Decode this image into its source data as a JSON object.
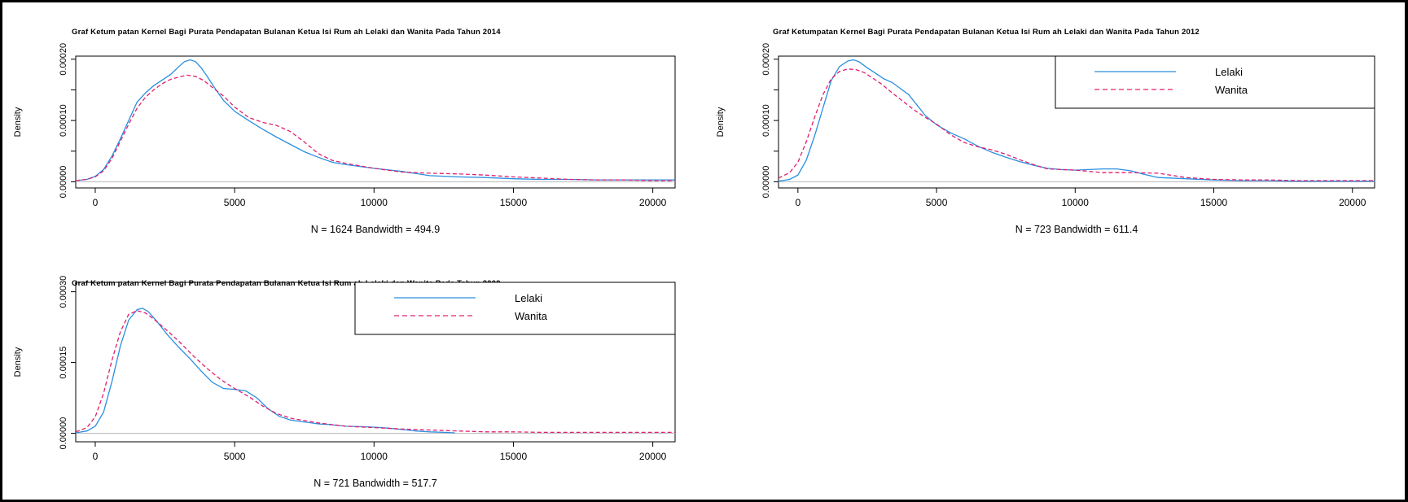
{
  "colors": {
    "lelaki": "#2a8fe0",
    "wanita": "#e0206e",
    "zero_line": "#bbbbbb"
  },
  "chart_data": [
    {
      "type": "line",
      "title": "Graf Ketum patan Kernel Bagi Purata Pendapatan Bulanan Ketua Isi Rum ah Lelaki dan Wanita Pada Tahun 2014",
      "ylabel": "Density",
      "xlabel": "N = 1624   Bandwidth = 494.9",
      "xlim": [
        -700,
        20800
      ],
      "ylim": [
        -1e-05,
        0.000205
      ],
      "xticks": [
        0,
        5000,
        10000,
        15000,
        20000
      ],
      "xtick_labels": [
        "0",
        "5000",
        "10000",
        "15000",
        "20000"
      ],
      "yticks": [
        0,
        5e-05,
        0.0001,
        0.00015,
        0.0002
      ],
      "ytick_labels": [
        "0.00000",
        "",
        "0.00010",
        "",
        "0.00020"
      ],
      "legend": null,
      "series": [
        {
          "name": "Lelaki",
          "style": "solid",
          "x": [
            -700,
            -300,
            0,
            300,
            600,
            900,
            1200,
            1500,
            1800,
            2100,
            2400,
            2700,
            3000,
            3200,
            3400,
            3600,
            3800,
            4000,
            4300,
            4600,
            5000,
            5500,
            6000,
            6500,
            7000,
            7500,
            8000,
            8500,
            9000,
            9500,
            10000,
            11000,
            12000,
            13000,
            14000,
            15000,
            16000,
            17000,
            18000,
            19000,
            20000,
            20800
          ],
          "y": [
            2e-06,
            4e-06,
            9e-06,
            2e-05,
            4.2e-05,
            7e-05,
            0.0001,
            0.00013,
            0.000145,
            0.000157,
            0.000166,
            0.000175,
            0.000188,
            0.000196,
            0.000199,
            0.000196,
            0.000186,
            0.000173,
            0.000152,
            0.000133,
            0.000115,
            0.0001,
            8.6e-05,
            7.3e-05,
            6.1e-05,
            4.9e-05,
            4e-05,
            3.2e-05,
            2.8e-05,
            2.5e-05,
            2.2e-05,
            1.7e-05,
            1e-05,
            8e-06,
            7e-06,
            5e-06,
            4e-06,
            4e-06,
            3e-06,
            3e-06,
            3e-06,
            3e-06
          ]
        },
        {
          "name": "Wanita",
          "style": "dashed",
          "x": [
            -700,
            -300,
            0,
            300,
            600,
            900,
            1200,
            1500,
            1800,
            2100,
            2400,
            2700,
            3000,
            3300,
            3600,
            3900,
            4200,
            4600,
            5000,
            5500,
            6000,
            6500,
            7000,
            7500,
            8000,
            8500,
            9000,
            10000,
            11000,
            12000,
            13000,
            14000,
            15000,
            16000,
            17000,
            18000,
            19000,
            20000,
            20800
          ],
          "y": [
            2e-06,
            4e-06,
            8e-06,
            1.8e-05,
            3.8e-05,
            6.6e-05,
            9.4e-05,
            0.00012,
            0.000138,
            0.00015,
            0.00016,
            0.000167,
            0.000171,
            0.000174,
            0.000172,
            0.000165,
            0.000154,
            0.00014,
            0.000122,
            0.000105,
            9.7e-05,
            9.2e-05,
            8.2e-05,
            6.5e-05,
            4.6e-05,
            3.5e-05,
            3e-05,
            2.2e-05,
            1.6e-05,
            1.4e-05,
            1.3e-05,
            1.1e-05,
            8e-06,
            6e-06,
            4e-06,
            3e-06,
            3e-06,
            2e-06,
            2e-06
          ]
        }
      ]
    },
    {
      "type": "line",
      "title": "Graf Ketumpatan Kernel Bagi Purata Pendapatan Bulanan Ketua Isi Rum ah Lelaki dan Wanita Pada Tahun 2012",
      "ylabel": "Density",
      "xlabel": "N = 723   Bandwidth = 611.4",
      "xlim": [
        -700,
        20800
      ],
      "ylim": [
        -1e-05,
        0.000205
      ],
      "xticks": [
        0,
        5000,
        10000,
        15000,
        20000
      ],
      "xtick_labels": [
        "0",
        "5000",
        "10000",
        "15000",
        "20000"
      ],
      "yticks": [
        0,
        5e-05,
        0.0001,
        0.00015,
        0.0002
      ],
      "ytick_labels": [
        "0.00000",
        "",
        "0.00010",
        "",
        "0.00020"
      ],
      "legend": {
        "placement": "top-right",
        "entries": [
          "Lelaki",
          "Wanita"
        ]
      },
      "series": [
        {
          "name": "Lelaki",
          "style": "solid",
          "x": [
            -700,
            -300,
            0,
            300,
            600,
            900,
            1200,
            1500,
            1800,
            2000,
            2200,
            2500,
            2800,
            3100,
            3400,
            3700,
            4000,
            4300,
            4600,
            5000,
            5500,
            6000,
            6500,
            7000,
            7500,
            8000,
            8500,
            9000,
            9500,
            10000,
            10500,
            11000,
            11500,
            12000,
            12500,
            13000,
            14000,
            15000,
            16000,
            17000,
            18000,
            19000,
            20000,
            20800
          ],
          "y": [
            1e-06,
            4e-06,
            1.1e-05,
            3.5e-05,
            7.5e-05,
            0.00012,
            0.000165,
            0.000188,
            0.000197,
            0.000199,
            0.000196,
            0.000186,
            0.000177,
            0.000168,
            0.000162,
            0.000152,
            0.000142,
            0.000125,
            0.000108,
            9.3e-05,
            8e-05,
            7e-05,
            5.8e-05,
            4.8e-05,
            4e-05,
            3.3e-05,
            2.7e-05,
            2.2e-05,
            2e-05,
            1.9e-05,
            2e-05,
            2.1e-05,
            2.1e-05,
            1.8e-05,
            1.2e-05,
            7e-06,
            5e-06,
            3e-06,
            2e-06,
            2e-06,
            1e-06,
            1e-06,
            1e-06,
            1e-06
          ]
        },
        {
          "name": "Wanita",
          "style": "dashed",
          "x": [
            -700,
            -300,
            0,
            300,
            600,
            900,
            1200,
            1500,
            1800,
            2100,
            2400,
            2700,
            3000,
            3400,
            3800,
            4200,
            4600,
            5000,
            5500,
            6000,
            6500,
            7000,
            7500,
            8000,
            8500,
            9000,
            10000,
            11000,
            12000,
            13000,
            14000,
            15000,
            16000,
            17000,
            18000,
            19000,
            20000,
            20800
          ],
          "y": [
            6e-06,
            1.5e-05,
            3.2e-05,
            6.5e-05,
            0.000105,
            0.000142,
            0.000168,
            0.00018,
            0.000184,
            0.000183,
            0.000178,
            0.000169,
            0.00016,
            0.000145,
            0.000131,
            0.000117,
            0.000105,
            9.4e-05,
            7.7e-05,
            6.4e-05,
            5.7e-05,
            5.2e-05,
            4.5e-05,
            3.6e-05,
            2.8e-05,
            2.1e-05,
            1.9e-05,
            1.5e-05,
            1.5e-05,
            1.4e-05,
            7e-06,
            4e-06,
            3e-06,
            3e-06,
            2e-06,
            2e-06,
            2e-06,
            2e-06
          ]
        }
      ]
    },
    {
      "type": "line",
      "title": "Graf Ketum patan Kernel Bagi Purata Pendapatan Bulanan Ketua Isi Rum ah Lelaki dan Wanita Pada Tahun 2009",
      "ylabel": "Density",
      "xlabel": "N = 721   Bandwidth = 517.7",
      "xlim": [
        -700,
        20800
      ],
      "ylim": [
        -1.8e-05,
        0.00032
      ],
      "xticks": [
        0,
        5000,
        10000,
        15000,
        20000
      ],
      "xtick_labels": [
        "0",
        "5000",
        "10000",
        "15000",
        "20000"
      ],
      "yticks": [
        0,
        0.00015,
        0.0003
      ],
      "ytick_labels": [
        "0.00000",
        "0.00015",
        "0.00030"
      ],
      "legend": {
        "placement": "top-right",
        "entries": [
          "Lelaki",
          "Wanita"
        ]
      },
      "series": [
        {
          "name": "Lelaki",
          "style": "solid",
          "x": [
            -700,
            -300,
            0,
            300,
            600,
            900,
            1200,
            1500,
            1700,
            1900,
            2200,
            2600,
            3000,
            3400,
            3800,
            4200,
            4600,
            5000,
            5400,
            5800,
            6200,
            6600,
            7000,
            7500,
            8000,
            8500,
            9000,
            9500,
            10000,
            10500,
            11000,
            11500,
            12000,
            12500,
            12900
          ],
          "y": [
            1e-06,
            5e-06,
            1.5e-05,
            4.5e-05,
            0.00011,
            0.000185,
            0.00024,
            0.000262,
            0.000265,
            0.000258,
            0.000238,
            0.000208,
            0.000182,
            0.000158,
            0.000132,
            0.000108,
            9.5e-05,
            9.3e-05,
            9e-05,
            7.5e-05,
            5.2e-05,
            3.6e-05,
            2.8e-05,
            2.4e-05,
            2e-05,
            1.8e-05,
            1.5e-05,
            1.4e-05,
            1.3e-05,
            1.1e-05,
            8e-06,
            5e-06,
            3e-06,
            2e-06,
            1e-06
          ]
        },
        {
          "name": "Wanita",
          "style": "dashed",
          "x": [
            -700,
            -300,
            0,
            300,
            600,
            900,
            1200,
            1500,
            1800,
            2100,
            2500,
            3000,
            3500,
            4000,
            4500,
            5000,
            5500,
            6000,
            6500,
            7000,
            7500,
            8000,
            9000,
            10000,
            11000,
            12000,
            13000,
            14000,
            15000,
            16000,
            17000,
            18000,
            19000,
            20000,
            20800
          ],
          "y": [
            3e-06,
            1.2e-05,
            3.5e-05,
            8.5e-05,
            0.000155,
            0.000215,
            0.000252,
            0.00026,
            0.000255,
            0.000242,
            0.000222,
            0.000195,
            0.000165,
            0.000138,
            0.000114,
            9.5e-05,
            7.8e-05,
            5.8e-05,
            4.2e-05,
            3.2e-05,
            2.7e-05,
            2.2e-05,
            1.5e-05,
            1.2e-05,
            9e-06,
            7e-06,
            5e-06,
            3e-06,
            3e-06,
            2e-06,
            2e-06,
            2e-06,
            2e-06,
            2e-06,
            2e-06
          ]
        }
      ]
    }
  ]
}
